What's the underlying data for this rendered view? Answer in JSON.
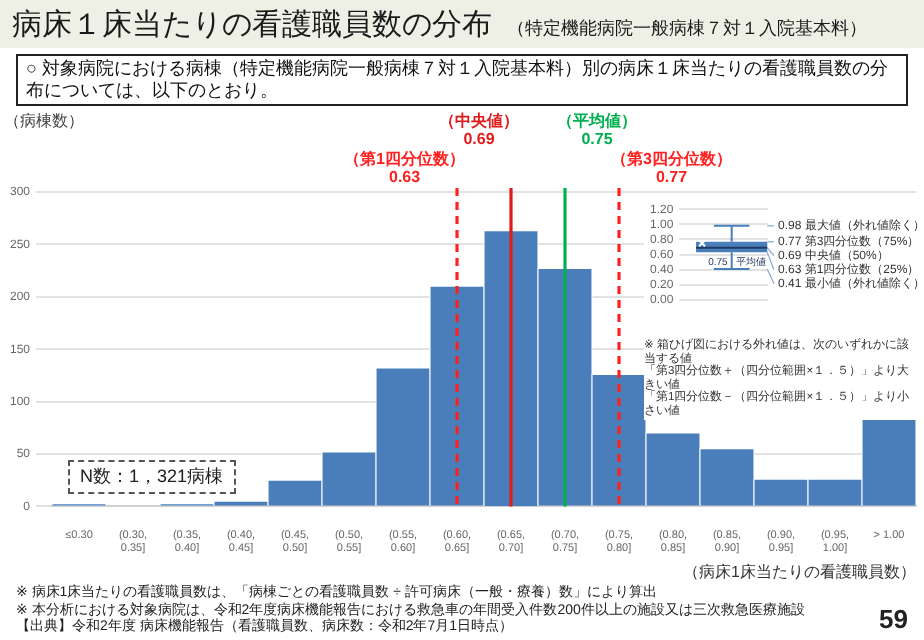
{
  "chart_data": [
    {
      "type": "bar",
      "title": "病床１床当たりの看護職員数の分布",
      "subtitle": "（特定機能病院一般病棟７対１入院基本料）",
      "xlabel": "（病床1床当たりの看護職員数）",
      "ylabel": "（病棟数）",
      "categories": [
        "≤0.30",
        "(0.30, 0.35]",
        "(0.35, 0.40]",
        "(0.40, 0.45]",
        "(0.45, 0.50]",
        "(0.50, 0.55]",
        "(0.55, 0.60]",
        "(0.60, 0.65]",
        "(0.65, 0.70]",
        "(0.70, 0.75]",
        "(0.75, 0.80]",
        "(0.80, 0.85]",
        "(0.85, 0.90]",
        "(0.90, 0.95]",
        "(0.95, 1.00]",
        "> 1.00"
      ],
      "values": [
        2,
        0,
        2,
        5,
        25,
        52,
        132,
        210,
        263,
        227,
        126,
        70,
        55,
        26,
        26,
        84
      ],
      "color": "#4a7ebb",
      "ylim": [
        0,
        300
      ],
      "yticks": [
        0,
        50,
        100,
        150,
        200,
        250,
        300
      ],
      "grid": "y",
      "legend": false,
      "ref_lines": [
        {
          "axis": "x",
          "value": "(0.60, 0.65]",
          "label": "（第1四分位数）\n0.63",
          "color": "#ff2020",
          "line_style": "dashed"
        },
        {
          "axis": "x",
          "value": "(0.65, 0.70]",
          "label": "（中央値）\n0.69",
          "color": "#e01b1b",
          "line_style": "solid"
        },
        {
          "axis": "x",
          "value": "(0.70, 0.75]",
          "label": "（平均値）\n0.75",
          "color": "#00b050",
          "line_style": "solid"
        },
        {
          "axis": "x",
          "value": "(0.75, 0.80]",
          "label": "（第3四分位数）\n0.77",
          "color": "#ff2020",
          "line_style": "dashed"
        }
      ],
      "annotations": [
        "○ 対象病院における病棟（特定機能病院一般病棟７対１入院基本料）別の病床１床当たりの看護職員数の分布については、以下のとおり。",
        "N数：1，321病棟",
        "※ 病床1床当たりの看護職員数は、「病棟ごとの看護職員数 ÷ 許可病床（一般・療養）数」により算出",
        "※ 本分析における対象病院は、令和2年度病床機能報告における救急車の年間受入件数200件以上の施設又は三次救急医療施設",
        "【出典】令和2年度 病床機能報告（看護職員数、病床数：令和2年7月1日時点）",
        "59"
      ]
    },
    {
      "type": "box",
      "categories": [
        null
      ],
      "boxes": [
        {
          "low": 0.41,
          "q1": 0.63,
          "median": 0.69,
          "q3": 0.77,
          "high": 0.98,
          "mean": 0.75
        }
      ],
      "color": "#4a7ebb",
      "ylim": [
        0,
        1.2
      ],
      "yticks": [
        {
          "value": 0,
          "label": "0.00"
        },
        {
          "value": 0.2,
          "label": "0.20"
        },
        {
          "value": 0.4,
          "label": "0.40"
        },
        {
          "value": 0.6,
          "label": "0.60"
        },
        {
          "value": 0.8,
          "label": "0.80"
        },
        {
          "value": 1.0,
          "label": "1.00"
        },
        {
          "value": 1.2,
          "label": "1.20"
        }
      ],
      "grid": "y",
      "legend": false,
      "annotations": [
        "0.98 最大値（外れ値除く）",
        "0.77 第3四分位数（75%）",
        "0.69 中央値（50%）",
        "0.63 第1四分位数（25%）",
        "0.41 最小値（外れ値除く）",
        "0.75",
        "平均値",
        "※ 箱ひげ図における外れ値は、次のいずれかに該当する値",
        "「第3四分位数＋（四分位範囲×１．５）」より大きい値",
        "「第1四分位数－（四分位範囲×１．５）」より小さい値"
      ]
    }
  ]
}
